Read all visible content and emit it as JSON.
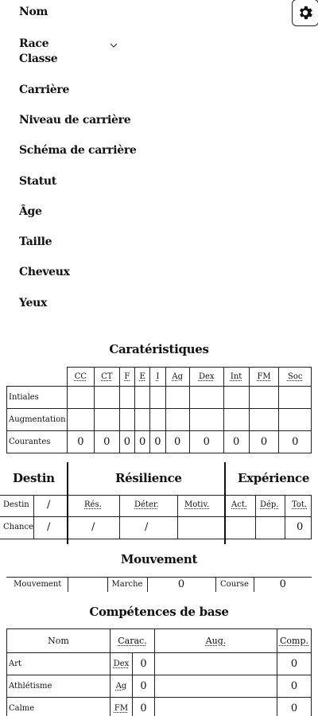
{
  "identity": {
    "nom": "Nom",
    "race": "Race",
    "classe": "Classe",
    "carriere": "Carrière",
    "niveau": "Niveau de carrière",
    "schema": "Schéma de carrière",
    "statut": "Statut",
    "age": "Âge",
    "taille": "Taille",
    "cheveux": "Cheveux",
    "yeux": "Yeux"
  },
  "characteristics": {
    "title": "Caratéristiques",
    "columns": [
      "CC",
      "CT",
      "F",
      "E",
      "I",
      "Ag",
      "Dex",
      "Int",
      "FM",
      "Soc"
    ],
    "row_labels": [
      "Intiales",
      "Augmentation",
      "Courantes"
    ],
    "current_values": [
      "0",
      "0",
      "0",
      "0",
      "0",
      "0",
      "0",
      "0",
      "0",
      "0"
    ]
  },
  "destin": {
    "title": "Destin",
    "rows": [
      "Destin",
      "Chance"
    ],
    "sep": "/"
  },
  "resilience": {
    "title": "Résilience",
    "columns": [
      "Rés.",
      "Déter.",
      "Motiv."
    ],
    "sep": "/"
  },
  "experience": {
    "title": "Expérience",
    "columns": [
      "Act.",
      "Dép.",
      "Tot."
    ],
    "total": "0"
  },
  "mouvement": {
    "title": "Mouvement",
    "mouvement_label": "Mouvement",
    "marche_label": "Marche",
    "marche_value": "0",
    "course_label": "Course",
    "course_value": "0"
  },
  "competences": {
    "title": "Compétences de base",
    "headers": {
      "nom": "Nom",
      "carac": "Carac.",
      "aug": "Aug.",
      "comp": "Comp."
    },
    "rows": [
      {
        "nom": "Art",
        "carac": "Dex",
        "val": "0",
        "comp": "0"
      },
      {
        "nom": "Athlétisme",
        "carac": "Ag",
        "val": "0",
        "comp": "0"
      },
      {
        "nom": "Calme",
        "carac": "FM",
        "val": "0",
        "comp": "0"
      }
    ]
  },
  "icons": {
    "settings": "gear-icon",
    "race_dropdown": "chevron-down-icon"
  }
}
